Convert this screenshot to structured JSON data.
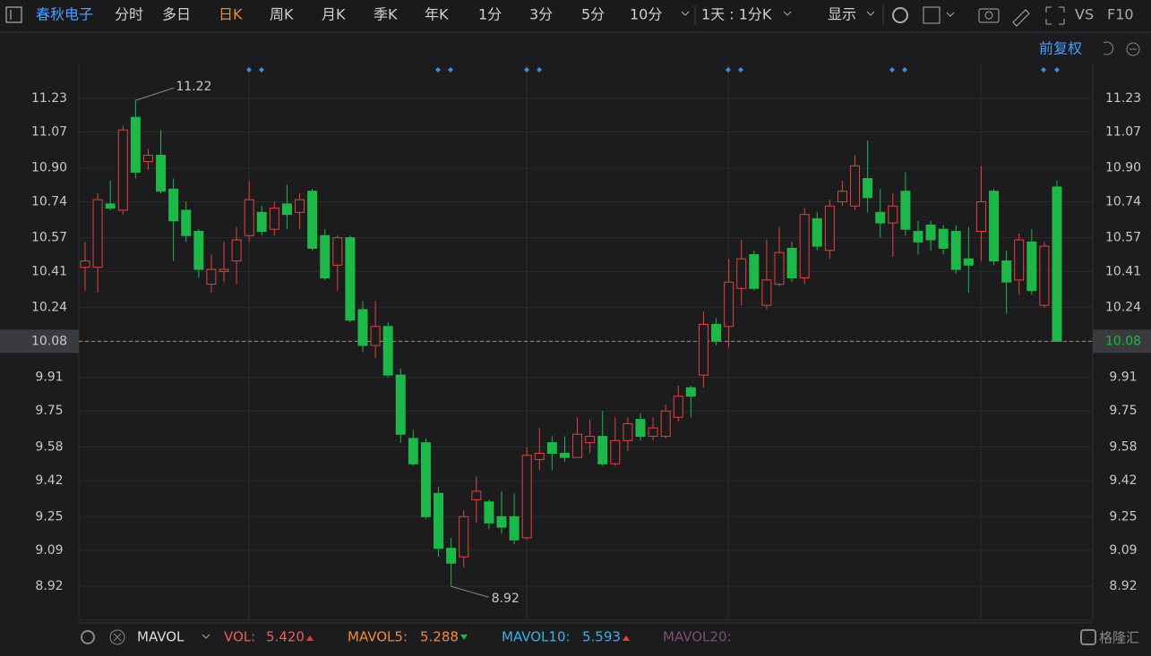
{
  "toolbar": {
    "stock": "春秋电子",
    "tabs": [
      "分时",
      "多日",
      "日K",
      "周K",
      "月K",
      "季K",
      "年K",
      "1分",
      "3分",
      "5分",
      "10分"
    ],
    "period": "1天 : 1分K",
    "display": "显示",
    "vs": "VS",
    "f10": "F10"
  },
  "adjust": "前复权",
  "footer": {
    "indicator": "MAVOL",
    "vol_label": "VOL:",
    "vol_value": "5.420",
    "mavol5_label": "MAVOL5:",
    "mavol5_value": "5.288",
    "mavol10_label": "MAVOL10:",
    "mavol10_value": "5.593",
    "mavol20_label": "MAVOL20:",
    "watermark": "格隆汇"
  },
  "chart_data": {
    "type": "candlestick",
    "open": [
      10.43,
      10.43,
      10.73,
      10.7,
      11.14,
      10.93,
      10.96,
      10.8,
      10.7,
      10.6,
      10.35,
      10.41,
      10.46,
      10.58,
      10.69,
      10.61,
      10.73,
      10.69,
      10.79,
      10.58,
      10.44,
      10.57,
      10.23,
      10.06,
      10.15,
      9.92,
      9.62,
      9.6,
      9.36,
      9.1,
      9.06,
      9.33,
      9.32,
      9.25,
      9.25,
      9.15,
      9.52,
      9.6,
      9.55,
      9.53,
      9.6,
      9.63,
      9.5,
      9.61,
      9.71,
      9.63,
      9.63,
      9.72,
      9.86,
      9.92,
      10.16,
      10.15,
      10.33,
      10.49,
      10.25,
      10.35,
      10.52,
      10.38,
      10.66,
      10.51,
      10.74,
      10.72,
      10.85,
      10.69,
      10.64,
      10.79,
      10.6,
      10.63,
      10.61,
      10.6,
      10.47,
      10.6,
      10.79,
      10.46,
      10.37,
      10.55,
      10.25,
      10.81
    ],
    "high": [
      10.55,
      10.78,
      10.84,
      11.1,
      11.22,
      10.99,
      11.08,
      10.85,
      10.74,
      10.61,
      10.49,
      10.55,
      10.62,
      10.84,
      10.72,
      10.74,
      10.82,
      10.78,
      10.8,
      10.61,
      10.58,
      10.58,
      10.27,
      10.27,
      10.17,
      9.95,
      9.66,
      9.62,
      9.39,
      9.15,
      9.28,
      9.44,
      9.33,
      9.37,
      9.36,
      9.58,
      9.67,
      9.63,
      9.63,
      9.72,
      9.71,
      9.75,
      9.72,
      9.72,
      9.74,
      9.72,
      9.78,
      9.87,
      9.87,
      10.22,
      10.19,
      10.47,
      10.56,
      10.51,
      10.56,
      10.62,
      10.55,
      10.71,
      10.69,
      10.75,
      10.84,
      10.96,
      11.03,
      10.8,
      10.78,
      10.88,
      10.65,
      10.65,
      10.63,
      10.63,
      10.62,
      10.91,
      10.8,
      10.51,
      10.59,
      10.61,
      10.55,
      10.84
    ],
    "low": [
      10.32,
      10.31,
      10.7,
      10.68,
      10.85,
      10.89,
      10.78,
      10.46,
      10.55,
      10.38,
      10.31,
      10.36,
      10.35,
      10.55,
      10.58,
      10.58,
      10.61,
      10.61,
      10.51,
      10.37,
      10.32,
      10.17,
      10.03,
      10.0,
      9.91,
      9.6,
      9.49,
      9.24,
      9.06,
      8.92,
      9.01,
      9.22,
      9.19,
      9.17,
      9.12,
      9.14,
      9.47,
      9.47,
      9.51,
      9.53,
      9.55,
      9.49,
      9.49,
      9.56,
      9.61,
      9.61,
      9.62,
      9.7,
      9.72,
      9.86,
      10.06,
      10.05,
      10.25,
      10.32,
      10.23,
      10.34,
      10.36,
      10.35,
      10.51,
      10.47,
      10.72,
      10.7,
      10.69,
      10.57,
      10.48,
      10.58,
      10.49,
      10.51,
      10.49,
      10.4,
      10.31,
      10.46,
      10.44,
      10.21,
      10.3,
      10.3,
      10.24,
      10.08
    ],
    "close": [
      10.46,
      10.75,
      10.71,
      11.08,
      10.88,
      10.96,
      10.79,
      10.65,
      10.58,
      10.42,
      10.42,
      10.42,
      10.56,
      10.75,
      10.6,
      10.71,
      10.68,
      10.75,
      10.52,
      10.38,
      10.57,
      10.18,
      10.06,
      10.15,
      9.92,
      9.64,
      9.5,
      9.25,
      9.1,
      9.03,
      9.25,
      9.37,
      9.22,
      9.2,
      9.14,
      9.54,
      9.55,
      9.55,
      9.53,
      9.64,
      9.63,
      9.5,
      9.61,
      9.69,
      9.63,
      9.67,
      9.75,
      9.82,
      9.82,
      10.16,
      10.08,
      10.36,
      10.47,
      10.33,
      10.37,
      10.5,
      10.38,
      10.68,
      10.53,
      10.72,
      10.79,
      10.91,
      10.76,
      10.64,
      10.72,
      10.61,
      10.55,
      10.56,
      10.52,
      10.42,
      10.44,
      10.74,
      10.46,
      10.36,
      10.56,
      10.32,
      10.53,
      10.08
    ],
    "up_color": "#e8413c",
    "down_color": "#1db848",
    "high_label_index": 4,
    "low_label_index": 29,
    "last_price": 10.08,
    "ylim": [
      8.76,
      11.39
    ],
    "yticks": [
      8.92,
      9.09,
      9.25,
      9.42,
      9.58,
      9.75,
      9.91,
      10.08,
      10.24,
      10.41,
      10.57,
      10.74,
      {
        "value": 10.9,
        "label": "10.90"
      },
      11.07,
      11.23
    ],
    "grid": true
  }
}
